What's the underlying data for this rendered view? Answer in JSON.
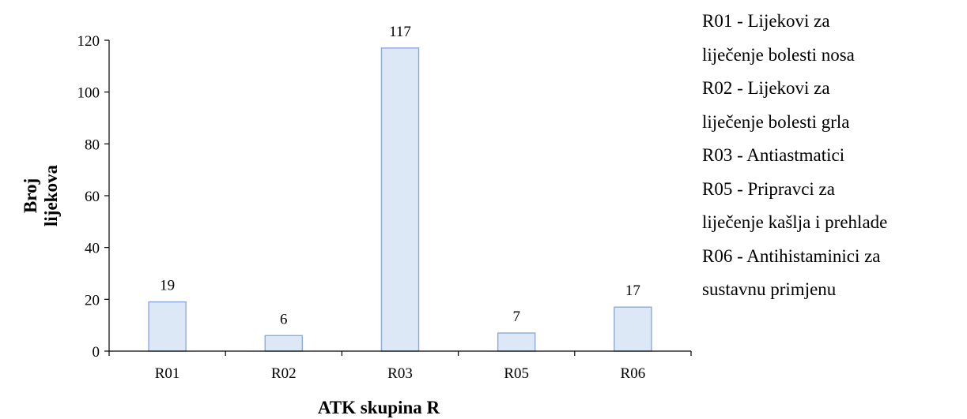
{
  "chart_data": {
    "type": "bar",
    "categories": [
      "R01",
      "R02",
      "R03",
      "R05",
      "R06"
    ],
    "values": [
      19,
      6,
      117,
      7,
      17
    ],
    "data_labels": [
      "19",
      "6",
      "117",
      "7",
      "17"
    ],
    "title": "",
    "xlabel": "ATK skupina R",
    "ylabel_lines": [
      "Broj",
      "lijekova"
    ],
    "ylim": [
      0,
      120
    ],
    "yticks": [
      0,
      20,
      40,
      60,
      80,
      100,
      120
    ],
    "grid": false,
    "legend_placement": "right",
    "colors": {
      "bar_fill": "#dce8f5",
      "bar_stroke": "#8eaadb",
      "axis": "#000000"
    },
    "legend_lines": [
      "R01 - Lijekovi za",
      "liječenje bolesti nosa",
      "R02 - Lijekovi za",
      "liječenje bolesti grla",
      "R03 - Antiastmatici",
      "R05 - Pripravci za",
      "liječenje kašlja i prehlade",
      "R06 - Antihistaminici za",
      "sustavnu primjenu"
    ]
  }
}
